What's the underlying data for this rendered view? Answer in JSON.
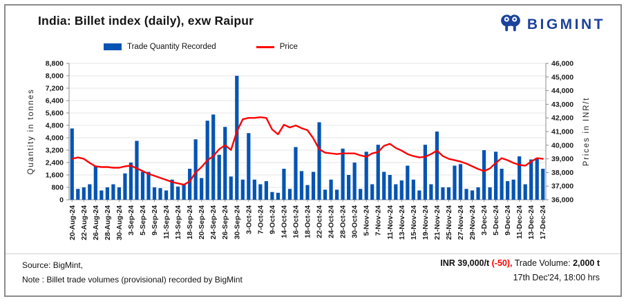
{
  "header": {
    "title": "India: Billet index (daily), exw Raipur",
    "logo_text": "BIGMINT",
    "logo_icon": "bigmint-owl-icon",
    "logo_color": "#1c429b"
  },
  "legend": [
    {
      "label": "Trade Quantity Recorded",
      "type": "bar",
      "color": "#0554b3"
    },
    {
      "label": "Price",
      "type": "line",
      "color": "#fe0000"
    }
  ],
  "footer": {
    "source": "Source: BigMint,",
    "note": "Note : Billet trade volumes (provisional) recorded by BigMint",
    "price_label": "INR 39,000/t",
    "price_change": "(-50),",
    "volume_label": "Trade Volume:",
    "volume_value": "2,000 t",
    "timestamp": "17th Dec'24, 18:00 hrs"
  },
  "chart_data": {
    "type": "bar+line",
    "title": "India: Billet index (daily), exw Raipur",
    "ylabel_left": "Quantity in tonnes",
    "ylabel_right": "Prices in INR/t",
    "ylim_left": [
      0,
      8800
    ],
    "ytick_step_left": 800,
    "yticks_left": [
      "0",
      "800",
      "1,600",
      "2,400",
      "3,200",
      "4,000",
      "4,800",
      "5,600",
      "6,400",
      "7,200",
      "8,000",
      "8,800"
    ],
    "ylim_right": [
      36000,
      46000
    ],
    "ytick_step_right": 1000,
    "yticks_right": [
      "36,000",
      "37,000",
      "38,000",
      "39,000",
      "40,000",
      "41,000",
      "42,000",
      "43,000",
      "44,000",
      "45,000",
      "46,000"
    ],
    "grid": "horizontal",
    "legend_position": "top",
    "x_label_every_n_bars": 2,
    "x_tick_labels": [
      "20-Aug-24",
      "22-Aug-24",
      "26-Aug-24",
      "28-Aug-24",
      "30-Aug-24",
      "3-Sep-24",
      "5-Sep-24",
      "9-Sep-24",
      "11-Sep-24",
      "13-Sep-24",
      "18-Sep-24",
      "20-Sep-24",
      "24-Sep-24",
      "26-Sep-24",
      "30-Sep-24",
      "3-Oct-24",
      "7-Oct-24",
      "9-Oct-24",
      "14-Oct-24",
      "16-Oct-24",
      "18-Oct-24",
      "22-Oct-24",
      "24-Oct-24",
      "28-Oct-24",
      "30-Oct-24",
      "5-Nov-24",
      "7-Nov-24",
      "11-Nov-24",
      "13-Nov-24",
      "15-Nov-24",
      "19-Nov-24",
      "21-Nov-24",
      "25-Nov-24",
      "27-Nov-24",
      "29-Nov-24",
      "3-Dec-24",
      "5-Dec-24",
      "9-Dec-24",
      "11-Dec-24",
      "13-Dec-24",
      "17-Dec-24"
    ],
    "series": [
      {
        "name": "Trade Quantity Recorded",
        "type": "bar",
        "axis": "left",
        "color": "#0554b3",
        "values": [
          4600,
          700,
          800,
          1000,
          2200,
          600,
          800,
          1000,
          800,
          1700,
          2400,
          3800,
          1800,
          1800,
          800,
          750,
          600,
          1300,
          850,
          1000,
          2000,
          3900,
          1400,
          5100,
          5500,
          2900,
          4700,
          1500,
          8000,
          1300,
          4300,
          1300,
          1000,
          1200,
          500,
          450,
          2000,
          700,
          3400,
          1850,
          950,
          1800,
          5000,
          650,
          1300,
          650,
          3300,
          1600,
          2400,
          700,
          3100,
          1000,
          3550,
          1800,
          1600,
          1000,
          1250,
          2200,
          1300,
          600,
          3550,
          1000,
          4400,
          800,
          800,
          2200,
          2300,
          700,
          600,
          800,
          3200,
          800,
          3100,
          2000,
          1200,
          1300,
          2800,
          1000,
          2600,
          2700,
          2000
        ]
      },
      {
        "name": "Price",
        "type": "line",
        "axis": "right",
        "color": "#fe0000",
        "values": [
          39000,
          39100,
          39000,
          38700,
          38450,
          38400,
          38400,
          38350,
          38350,
          38450,
          38500,
          38300,
          38100,
          37900,
          37750,
          37600,
          37450,
          37300,
          37200,
          37100,
          37350,
          38000,
          38400,
          38900,
          39200,
          39700,
          40000,
          39650,
          41000,
          41900,
          42000,
          42000,
          42050,
          42000,
          41150,
          40800,
          41500,
          41300,
          41450,
          41250,
          41100,
          40500,
          39700,
          39450,
          39400,
          39350,
          39400,
          39400,
          39400,
          39250,
          39150,
          39400,
          39500,
          39950,
          40100,
          39800,
          39600,
          39350,
          39200,
          39100,
          39150,
          39350,
          39600,
          39200,
          39000,
          38900,
          38800,
          38650,
          38450,
          38250,
          38100,
          38300,
          38700,
          39050,
          38900,
          38700,
          38550,
          38500,
          38800,
          39050,
          39000
        ]
      }
    ]
  }
}
